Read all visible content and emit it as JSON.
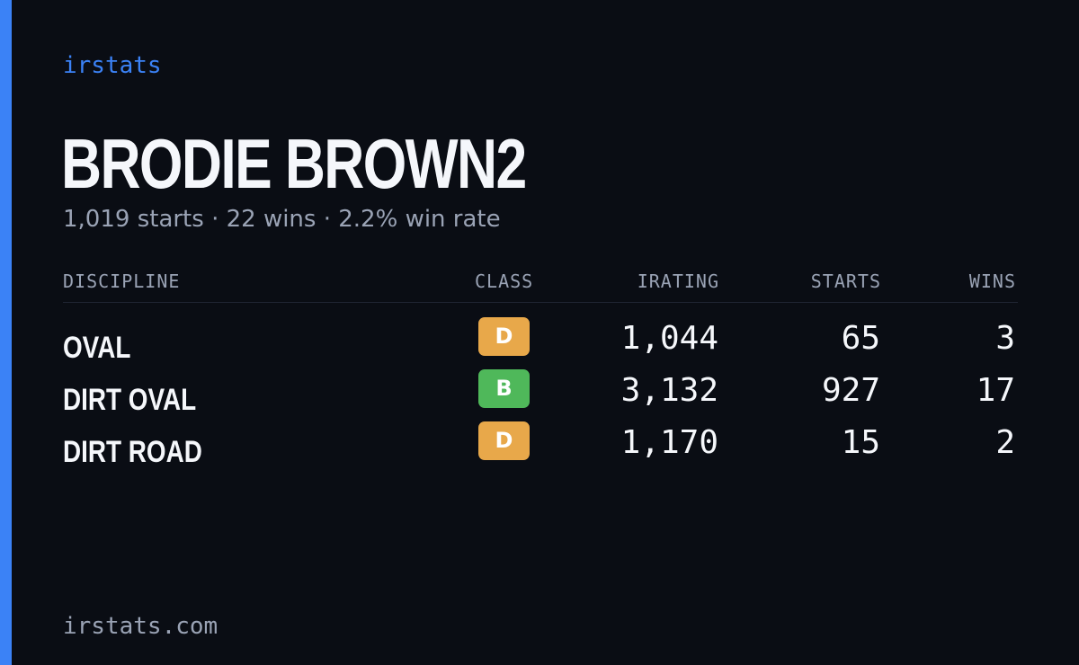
{
  "brand": "irstats",
  "driver": {
    "name": "BRODIE BROWN2",
    "summary": "1,019 starts · 22 wins · 2.2% win rate"
  },
  "table": {
    "headers": {
      "discipline": "DISCIPLINE",
      "class": "CLASS",
      "irating": "IRATING",
      "starts": "STARTS",
      "wins": "WINS"
    },
    "rows": [
      {
        "discipline": "OVAL",
        "class": "D",
        "class_color": "#e8a84a",
        "irating": "1,044",
        "starts": "65",
        "wins": "3"
      },
      {
        "discipline": "DIRT OVAL",
        "class": "B",
        "class_color": "#4fb85a",
        "irating": "3,132",
        "starts": "927",
        "wins": "17"
      },
      {
        "discipline": "DIRT ROAD",
        "class": "D",
        "class_color": "#e8a84a",
        "irating": "1,170",
        "starts": "15",
        "wins": "2"
      }
    ]
  },
  "footer": "irstats.com",
  "colors": {
    "background": "#0a0d14",
    "accent": "#3b82f6",
    "text": "#f5f7fb",
    "muted": "#9aa3b5"
  }
}
